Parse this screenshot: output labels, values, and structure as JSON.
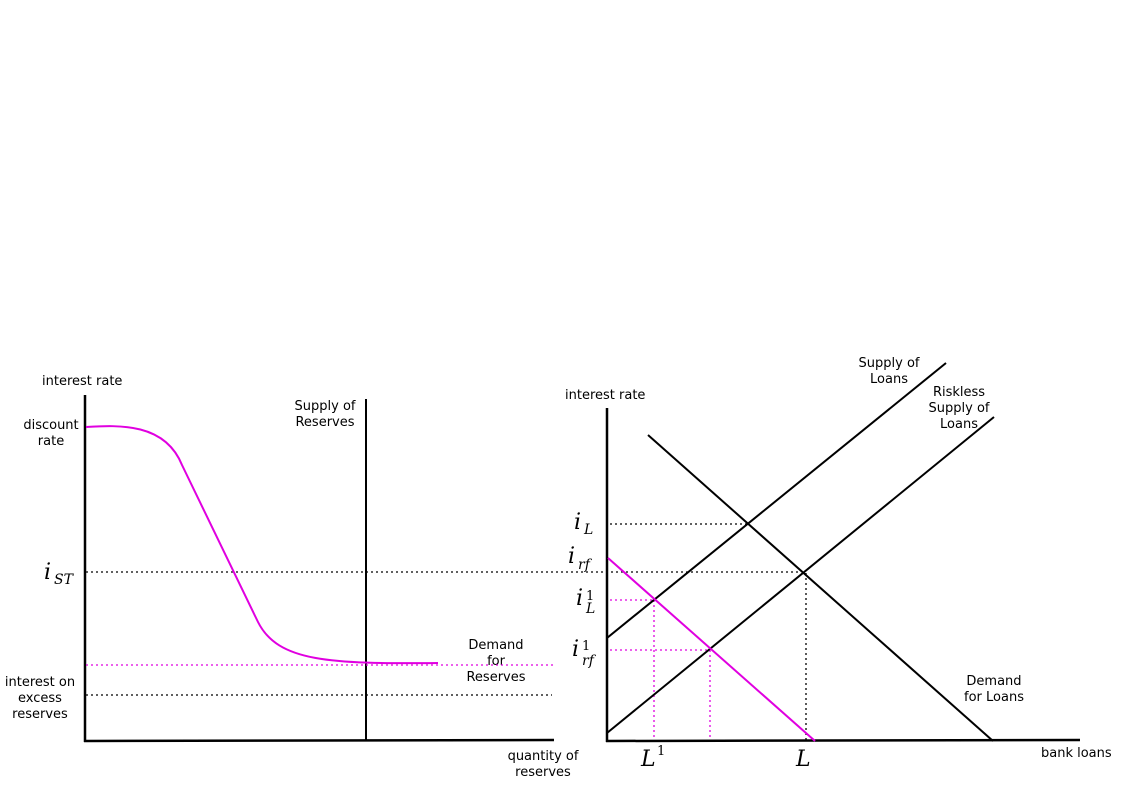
{
  "left_panel": {
    "y_axis_label": "interest rate",
    "x_axis_label_line1": "quantity of",
    "x_axis_label_line2": "reserves",
    "discount_rate_line1": "discount",
    "discount_rate_line2": "rate",
    "ioer_line1": "interest on",
    "ioer_line2": "excess",
    "ioer_line3": "reserves",
    "i_st_base": "i",
    "i_st_sub": "ST",
    "supply_line1": "Supply of",
    "supply_line2": "Reserves",
    "demand_line1": "Demand",
    "demand_line2": "for",
    "demand_line3": "Reserves"
  },
  "right_panel": {
    "y_axis_label": "interest rate",
    "x_axis_label": "bank loans",
    "supply_line1": "Supply of",
    "supply_line2": "Loans",
    "riskless_line1": "Riskless",
    "riskless_line2": "Supply of",
    "riskless_line3": "Loans",
    "demand_line1": "Demand",
    "demand_line2": "for Loans",
    "i_L_base": "i",
    "i_L_sub": "L",
    "i_rf_base": "i",
    "i_rf_sub": "rf",
    "i_L1_base": "i",
    "i_L1_sub": "L",
    "i_L1_sup": "1",
    "i_rf1_base": "i",
    "i_rf1_sub": "rf",
    "i_rf1_sup": "1",
    "L1_base": "L",
    "L1_sup": "1",
    "L_base": "L"
  },
  "colors": {
    "axes": "#000000",
    "shifted_curves": "#e000e0"
  }
}
